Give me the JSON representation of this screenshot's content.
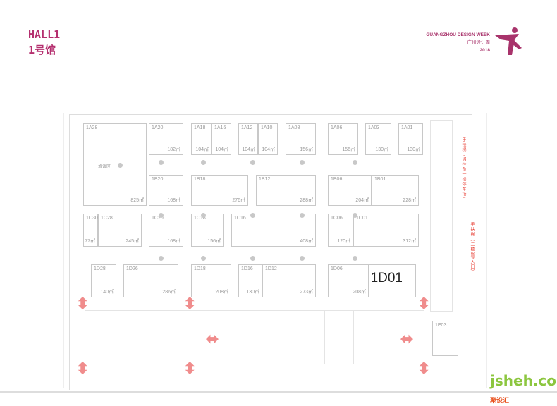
{
  "header": {
    "title_en": "HALL1",
    "title_cn": "1号馆"
  },
  "brand": {
    "name_en": "GUANGZHOU DESIGN WEEK",
    "name_cn": "广州设计周",
    "year": "2018"
  },
  "watermark": {
    "latin": "jsheh.com",
    "cn": "聚设汇"
  },
  "accent_color": "#b5306f",
  "arrow_color": "#f08c8c",
  "booths": [
    {
      "id": "1A28",
      "area": "825㎡",
      "note": "洽谈区"
    },
    {
      "id": "1A20",
      "area": "182㎡"
    },
    {
      "id": "1A18",
      "area": "104㎡"
    },
    {
      "id": "1A16",
      "area": "104㎡"
    },
    {
      "id": "1A12",
      "area": "104㎡"
    },
    {
      "id": "1A10",
      "area": "104㎡"
    },
    {
      "id": "1A08",
      "area": "156㎡"
    },
    {
      "id": "1A06",
      "area": "156㎡"
    },
    {
      "id": "1A03",
      "area": "130㎡"
    },
    {
      "id": "1A01",
      "area": "130㎡"
    },
    {
      "id": "1B20",
      "area": "168㎡"
    },
    {
      "id": "1B18",
      "area": "276㎡"
    },
    {
      "id": "1B12",
      "area": "288㎡"
    },
    {
      "id": "1B06",
      "area": "204㎡"
    },
    {
      "id": "1B01",
      "area": "228㎡"
    },
    {
      "id": "1C30",
      "area": "77㎡"
    },
    {
      "id": "1C28",
      "area": "245㎡"
    },
    {
      "id": "1C20",
      "area": "168㎡"
    },
    {
      "id": "1C18",
      "area": "156㎡"
    },
    {
      "id": "1C16",
      "area": "408㎡"
    },
    {
      "id": "1C06",
      "area": "120㎡"
    },
    {
      "id": "1C01",
      "area": "312㎡"
    },
    {
      "id": "1D28",
      "area": "140㎡"
    },
    {
      "id": "1D26",
      "area": "286㎡"
    },
    {
      "id": "1D18",
      "area": "208㎡"
    },
    {
      "id": "1D16",
      "area": "130㎡"
    },
    {
      "id": "1D12",
      "area": "273㎡"
    },
    {
      "id": "1D06",
      "area": "208㎡"
    },
    {
      "id": "1D01",
      "area": "",
      "highlight": true
    },
    {
      "id": "1E03",
      "area": ""
    }
  ],
  "escalator_labels": [
    "手扶梯（通往负一楼停车场）",
    "手扶梯（二楼3号入口）"
  ]
}
